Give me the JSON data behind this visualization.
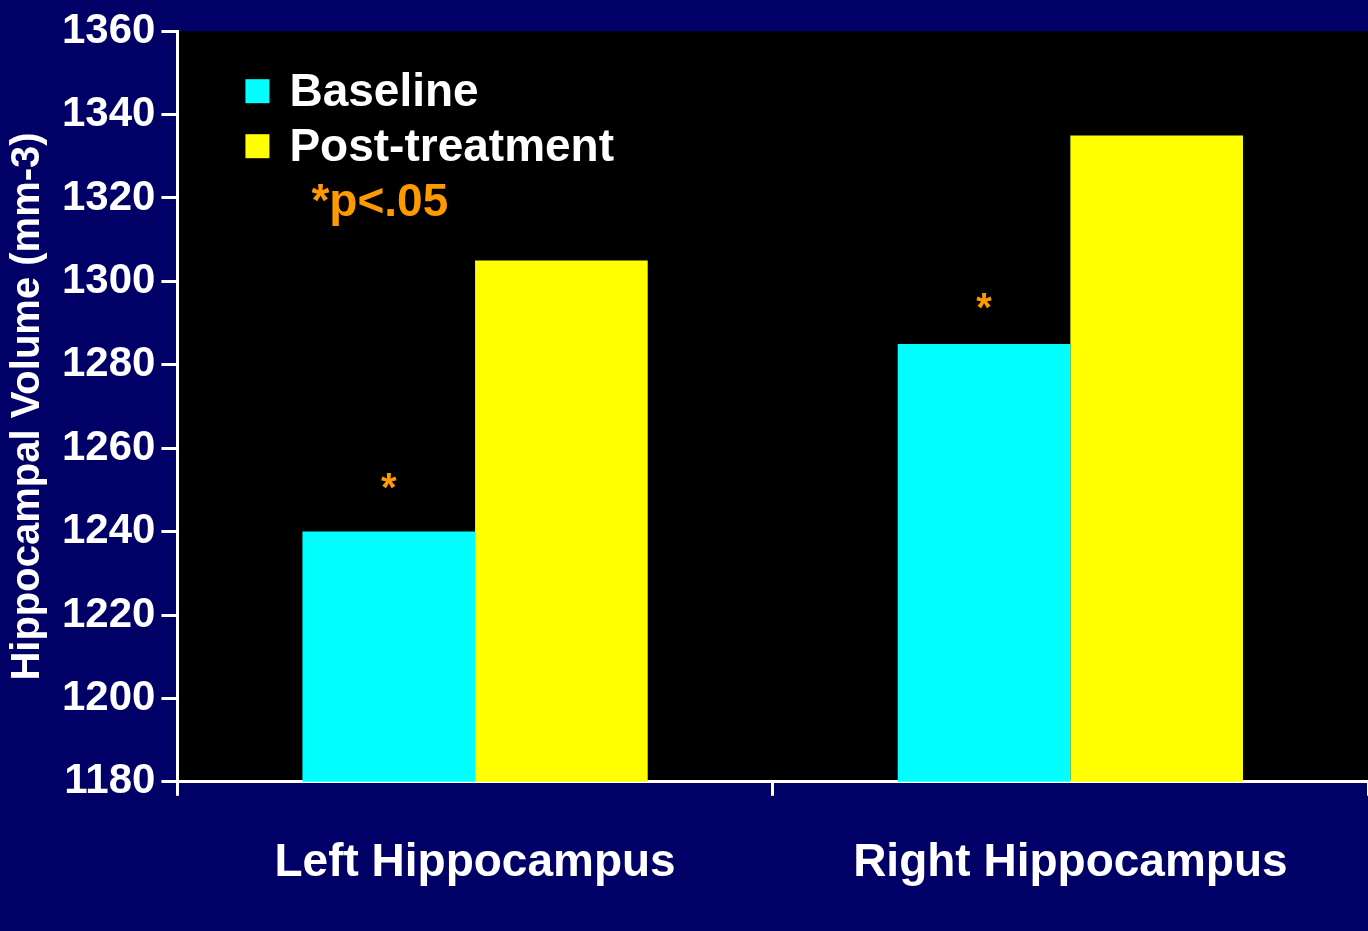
{
  "chart_data": {
    "type": "bar",
    "ylabel": "Hippocampal Volume (mm-3)",
    "categories": [
      "Left Hippocampus",
      "Right Hippocampus"
    ],
    "series": [
      {
        "name": "Baseline",
        "color": "#00ffff",
        "values": [
          1240,
          1285
        ]
      },
      {
        "name": "Post-treatment",
        "color": "#ffff00",
        "values": [
          1305,
          1335
        ]
      }
    ],
    "ylim": [
      1180,
      1360
    ],
    "yticks": [
      1180,
      1200,
      1220,
      1240,
      1260,
      1280,
      1300,
      1320,
      1340,
      1360
    ],
    "grid": false,
    "legend": "top left",
    "annotations": [
      {
        "text": "*",
        "x": "Left Hippocampus",
        "y": 1252
      },
      {
        "text": "*",
        "x": "Right Hippocampus",
        "y": 1295
      },
      "*p<.05"
    ]
  }
}
